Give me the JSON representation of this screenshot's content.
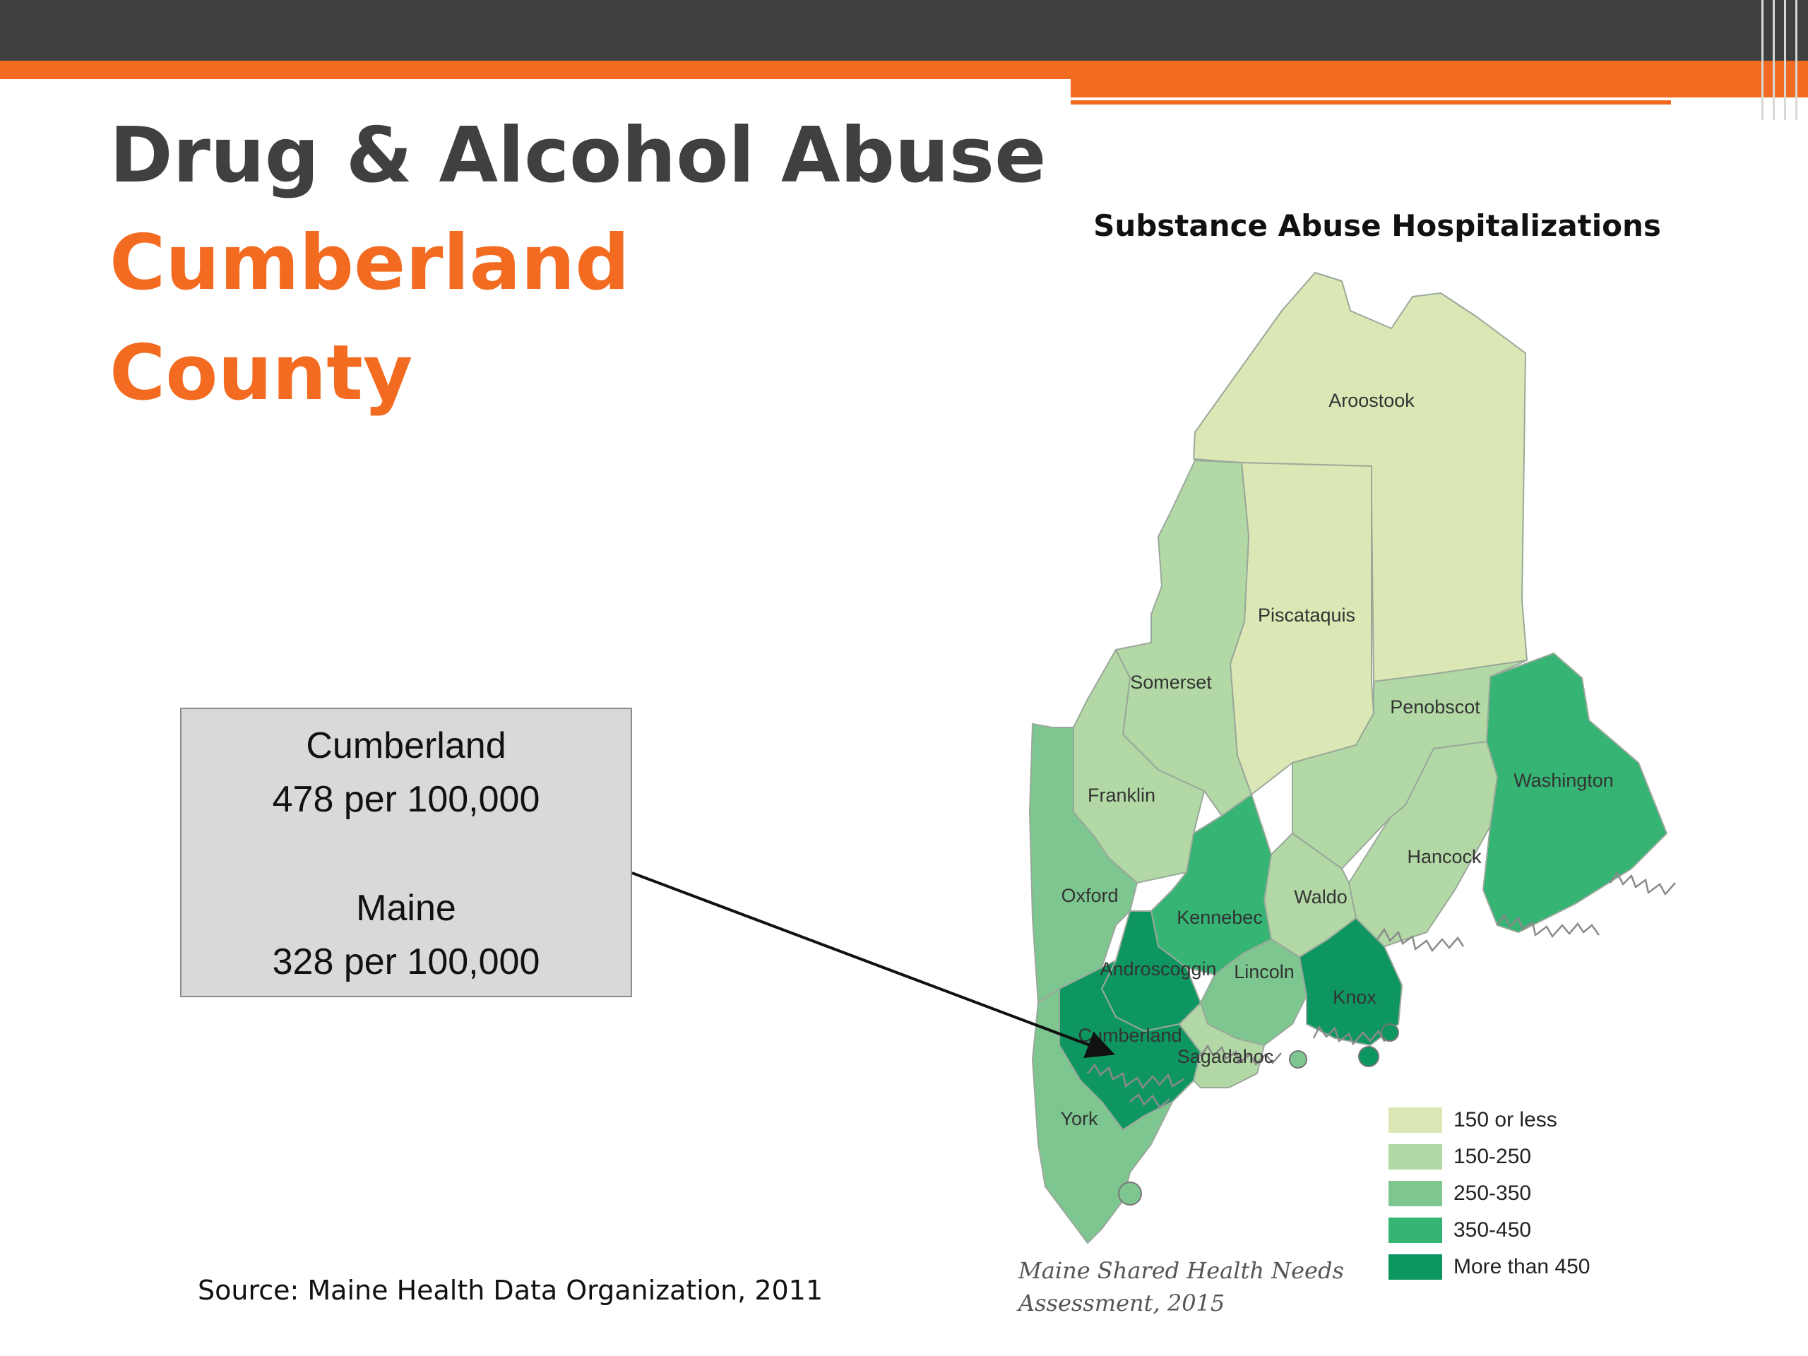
{
  "slide": {
    "title_line1": "Drug & Alcohol Abuse",
    "title_line2": "Cumberland",
    "title_line3": "County",
    "title_color": "#404040",
    "accent_color": "#f26b21",
    "topbar_color": "#404040"
  },
  "infobox": {
    "cumberland_name": "Cumberland",
    "cumberland_rate": "478 per 100,000",
    "maine_name": "Maine",
    "maine_rate": "328 per 100,000"
  },
  "source": "Source: Maine Health Data Organization, 2011",
  "map": {
    "title": "Substance Abuse Hospitalizations",
    "credit_line1": "Maine Shared Health Needs",
    "credit_line2": "Assessment, 2015",
    "legend": [
      {
        "label": "150 or less",
        "color": "#dbe8b5"
      },
      {
        "label": "150-250",
        "color": "#b2d9a5"
      },
      {
        "label": "250-350",
        "color": "#7dc690"
      },
      {
        "label": "350-450",
        "color": "#35b474"
      },
      {
        "label": "More than 450",
        "color": "#0e9660"
      }
    ],
    "counties": [
      {
        "name": "Aroostook",
        "label": "Aroostook",
        "class": "150 or less"
      },
      {
        "name": "Piscataquis",
        "label": "Piscataquis",
        "class": "150 or less"
      },
      {
        "name": "Somerset",
        "label": "Somerset",
        "class": "150-250"
      },
      {
        "name": "Penobscot",
        "label": "Penobscot",
        "class": "150-250"
      },
      {
        "name": "Franklin",
        "label": "Franklin",
        "class": "150-250"
      },
      {
        "name": "Hancock",
        "label": "Hancock",
        "class": "150-250"
      },
      {
        "name": "Waldo",
        "label": "Waldo",
        "class": "150-250"
      },
      {
        "name": "Washington",
        "label": "Washington",
        "class": "350-450"
      },
      {
        "name": "Oxford",
        "label": "Oxford",
        "class": "250-350"
      },
      {
        "name": "Kennebec",
        "label": "Kennebec",
        "class": "350-450"
      },
      {
        "name": "Androscoggin",
        "label": "Androscoggin",
        "class": "More than 450"
      },
      {
        "name": "Lincoln",
        "label": "Lincoln",
        "class": "250-350"
      },
      {
        "name": "Knox",
        "label": "Knox",
        "class": "More than 450"
      },
      {
        "name": "Cumberland",
        "label": "Cumberland",
        "class": "More than 450"
      },
      {
        "name": "Sagadahoc",
        "label": "Sagadahoc",
        "class": "150-250"
      },
      {
        "name": "York",
        "label": "York",
        "class": "250-350"
      }
    ]
  }
}
